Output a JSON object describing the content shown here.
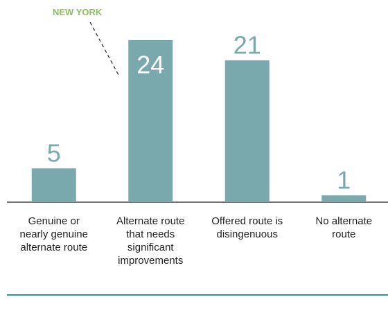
{
  "chart_data": {
    "type": "bar",
    "categories": [
      "Genuine or nearly genuine alternate route",
      "Alternate route that needs significant improvements",
      "Offered route is disingenuous",
      "No alternate route"
    ],
    "values": [
      5,
      24,
      21,
      1
    ],
    "color": "#7aa9ad",
    "ylim": [
      0,
      24
    ],
    "annotation": "NEW YORK"
  }
}
